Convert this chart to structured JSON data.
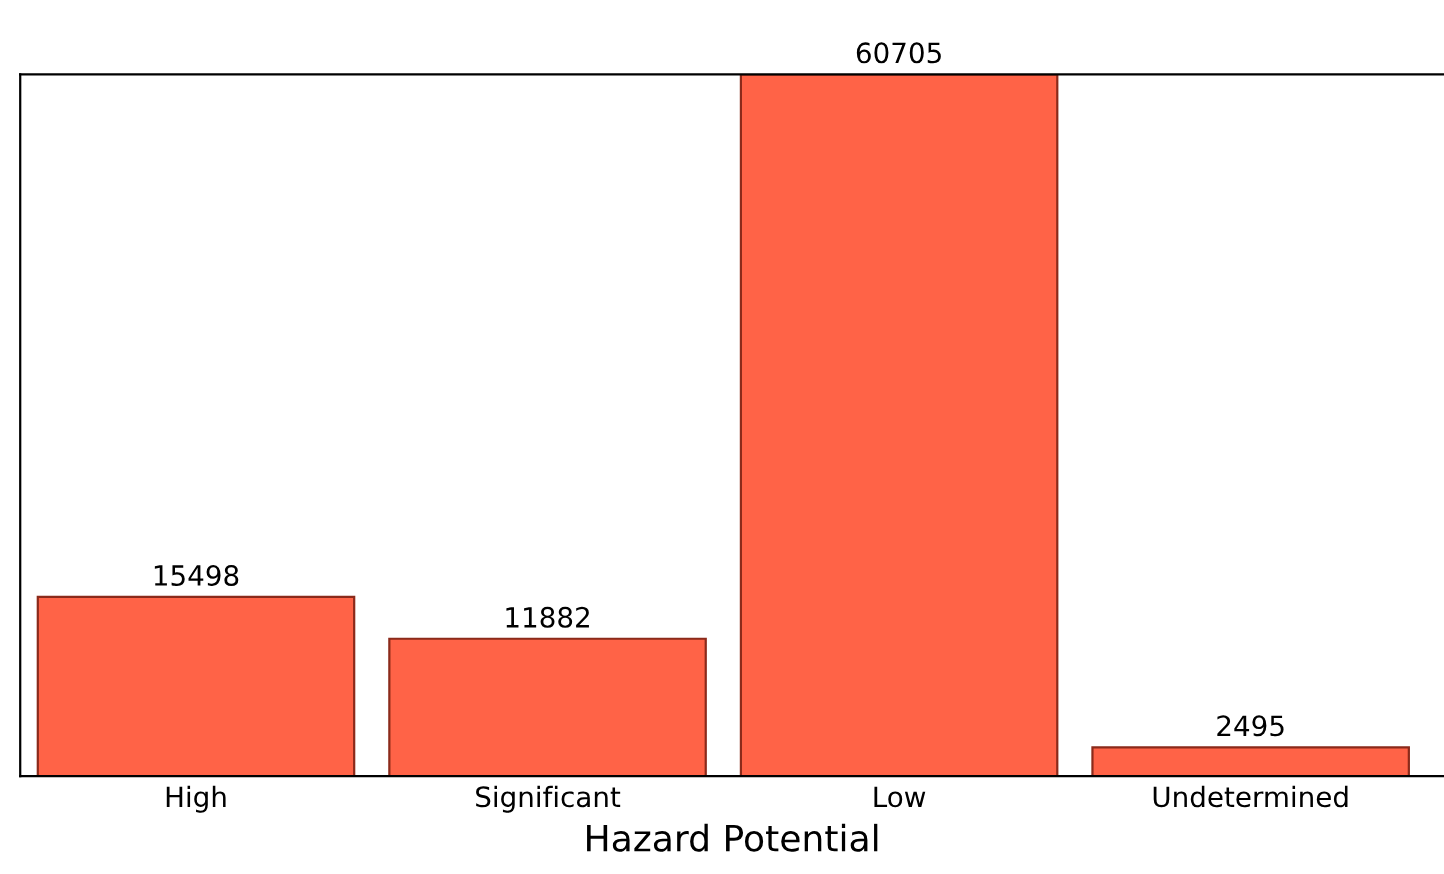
{
  "chart_data": {
    "type": "bar",
    "xlabel": "Hazard Potential",
    "categories": [
      "High",
      "Significant",
      "Low",
      "Undetermined"
    ],
    "values": [
      15498,
      11882,
      60705,
      2495
    ],
    "color": "#ff6347",
    "data_labels": true,
    "grid": false,
    "legend": false
  }
}
